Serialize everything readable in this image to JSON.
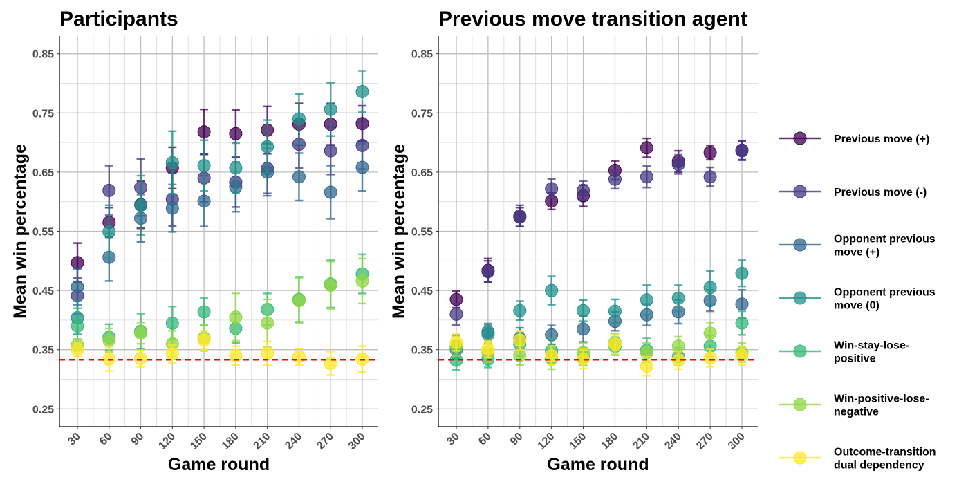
{
  "colors": {
    "Previous move (+)": "#440154",
    "Previous move (-)": "#443983",
    "Opponent previous move (+)": "#31688e",
    "Opponent previous move (0)": "#21918c",
    "Win-stay-lose-positive": "#35b779",
    "Win-positive-lose-negative": "#90d743",
    "Outcome-transition dual dependency": "#fde725",
    "chance_line": "#ff0000",
    "grid": "#bdbdbd"
  },
  "legend": {
    "entries": [
      {
        "name": "Previous move (+)",
        "lines": [
          "Previous move (+)"
        ]
      },
      {
        "name": "Previous move (-)",
        "lines": [
          "Previous move (-)"
        ]
      },
      {
        "name": "Opponent previous move (+)",
        "lines": [
          "Opponent previous",
          "move (+)"
        ]
      },
      {
        "name": "Opponent previous move (0)",
        "lines": [
          "Opponent previous",
          "move (0)"
        ]
      },
      {
        "name": "Win-stay-lose-positive",
        "lines": [
          "Win-stay-lose-",
          "positive"
        ]
      },
      {
        "name": "Win-positive-lose-negative",
        "lines": [
          "Win-positive-lose-",
          "negative"
        ]
      },
      {
        "name": "Outcome-transition dual dependency",
        "lines": [
          "Outcome-transition",
          "dual dependency"
        ]
      }
    ],
    "placement": "right"
  },
  "chart_data": [
    {
      "type": "scatter",
      "title": "Participants",
      "xlabel": "Game round",
      "ylabel": "Mean win percentage",
      "x": [
        30,
        60,
        90,
        120,
        150,
        180,
        210,
        240,
        270,
        300
      ],
      "x_tick_labels": [
        "30",
        "60",
        "90",
        "120",
        "150",
        "180",
        "210",
        "240",
        "270",
        "300"
      ],
      "yticks": [
        0.25,
        0.35,
        0.45,
        0.55,
        0.65,
        0.75,
        0.85
      ],
      "y_tick_labels": [
        "0.25",
        "0.35",
        "0.45",
        "0.55",
        "0.65",
        "0.75",
        "0.85"
      ],
      "ylim": [
        0.22,
        0.88
      ],
      "reference_line": 0.333,
      "grid": true,
      "series": [
        {
          "name": "Previous move (+)",
          "values": [
            0.497,
            0.565,
            0.595,
            0.657,
            0.718,
            0.715,
            0.721,
            0.731,
            0.731,
            0.732
          ],
          "err": [
            0.033,
            0.025,
            0.04,
            0.035,
            0.038,
            0.04,
            0.04,
            0.035,
            0.035,
            0.03
          ]
        },
        {
          "name": "Previous move (-)",
          "values": [
            0.441,
            0.619,
            0.624,
            0.604,
            0.64,
            0.633,
            0.656,
            0.697,
            0.686,
            0.695
          ],
          "err": [
            0.03,
            0.042,
            0.048,
            0.045,
            0.04,
            0.042,
            0.042,
            0.04,
            0.04,
            0.04
          ]
        },
        {
          "name": "Opponent previous move (+)",
          "values": [
            0.456,
            0.506,
            0.572,
            0.589,
            0.601,
            0.625,
            0.65,
            0.642,
            0.616,
            0.658
          ],
          "err": [
            0.03,
            0.04,
            0.04,
            0.04,
            0.043,
            0.042,
            0.04,
            0.04,
            0.045,
            0.04
          ]
        },
        {
          "name": "Opponent previous move (0)",
          "values": [
            0.404,
            0.549,
            0.594,
            0.666,
            0.661,
            0.657,
            0.693,
            0.74,
            0.756,
            0.786
          ],
          "err": [
            0.028,
            0.045,
            0.05,
            0.053,
            0.043,
            0.042,
            0.045,
            0.042,
            0.045,
            0.035
          ]
        },
        {
          "name": "Win-stay-lose-positive",
          "values": [
            0.39,
            0.371,
            0.381,
            0.395,
            0.414,
            0.386,
            0.418,
            0.435,
            0.461,
            0.478
          ],
          "err": [
            0.03,
            0.022,
            0.03,
            0.028,
            0.023,
            0.025,
            0.027,
            0.038,
            0.04,
            0.033
          ]
        },
        {
          "name": "Win-positive-lose-negative",
          "values": [
            0.358,
            0.366,
            0.378,
            0.36,
            0.37,
            0.405,
            0.395,
            0.433,
            0.459,
            0.466
          ],
          "err": [
            0.01,
            0.02,
            0.018,
            0.022,
            0.022,
            0.04,
            0.04,
            0.038,
            0.04,
            0.038
          ]
        },
        {
          "name": "Outcome-transition dual dependency",
          "values": [
            0.35,
            0.334,
            0.335,
            0.343,
            0.366,
            0.34,
            0.344,
            0.338,
            0.327,
            0.334
          ],
          "err": [
            0.012,
            0.02,
            0.014,
            0.015,
            0.016,
            0.016,
            0.02,
            0.014,
            0.02,
            0.022
          ]
        }
      ]
    },
    {
      "type": "scatter",
      "title": "Previous move transition agent",
      "xlabel": "Game round",
      "ylabel": "Mean win percentage",
      "x": [
        30,
        60,
        90,
        120,
        150,
        180,
        210,
        240,
        270,
        300
      ],
      "x_tick_labels": [
        "30",
        "60",
        "90",
        "120",
        "150",
        "180",
        "210",
        "240",
        "270",
        "300"
      ],
      "yticks": [
        0.25,
        0.35,
        0.45,
        0.55,
        0.65,
        0.75,
        0.85
      ],
      "y_tick_labels": [
        "0.25",
        "0.35",
        "0.45",
        "0.55",
        "0.65",
        "0.75",
        "0.85"
      ],
      "ylim": [
        0.22,
        0.88
      ],
      "reference_line": 0.333,
      "grid": true,
      "series": [
        {
          "name": "Previous move (+)",
          "values": [
            0.435,
            0.484,
            0.574,
            0.601,
            0.61,
            0.653,
            0.691,
            0.668,
            0.683,
            0.687
          ],
          "err": [
            0.014,
            0.02,
            0.016,
            0.014,
            0.018,
            0.016,
            0.016,
            0.018,
            0.012,
            0.016
          ]
        },
        {
          "name": "Previous move (-)",
          "values": [
            0.41,
            0.482,
            0.576,
            0.622,
            0.619,
            0.638,
            0.642,
            0.663,
            0.642,
            0.686
          ],
          "err": [
            0.018,
            0.018,
            0.018,
            0.016,
            0.016,
            0.016,
            0.018,
            0.016,
            0.016,
            0.016
          ]
        },
        {
          "name": "Opponent previous move (+)",
          "values": [
            0.355,
            0.38,
            0.369,
            0.375,
            0.385,
            0.398,
            0.409,
            0.414,
            0.433,
            0.427
          ],
          "err": [
            0.02,
            0.014,
            0.018,
            0.016,
            0.022,
            0.016,
            0.018,
            0.02,
            0.018,
            0.024
          ]
        },
        {
          "name": "Opponent previous move (0)",
          "values": [
            0.35,
            0.376,
            0.416,
            0.45,
            0.416,
            0.415,
            0.434,
            0.437,
            0.455,
            0.479
          ],
          "err": [
            0.015,
            0.016,
            0.016,
            0.024,
            0.018,
            0.02,
            0.025,
            0.022,
            0.028,
            0.022
          ]
        },
        {
          "name": "Win-stay-lose-positive",
          "values": [
            0.332,
            0.334,
            0.359,
            0.348,
            0.338,
            0.356,
            0.349,
            0.338,
            0.356,
            0.395
          ],
          "err": [
            0.016,
            0.014,
            0.02,
            0.02,
            0.015,
            0.015,
            0.02,
            0.015,
            0.018,
            0.02
          ]
        },
        {
          "name": "Win-positive-lose-negative",
          "values": [
            0.356,
            0.345,
            0.34,
            0.335,
            0.345,
            0.362,
            0.345,
            0.356,
            0.378,
            0.345
          ],
          "err": [
            0.016,
            0.016,
            0.016,
            0.018,
            0.016,
            0.015,
            0.016,
            0.016,
            0.018,
            0.016
          ]
        },
        {
          "name": "Outcome-transition dual dependency",
          "values": [
            0.362,
            0.351,
            0.366,
            0.34,
            0.334,
            0.359,
            0.322,
            0.332,
            0.336,
            0.34
          ],
          "err": [
            0.014,
            0.014,
            0.016,
            0.016,
            0.016,
            0.016,
            0.016,
            0.015,
            0.015,
            0.016
          ]
        }
      ]
    }
  ]
}
